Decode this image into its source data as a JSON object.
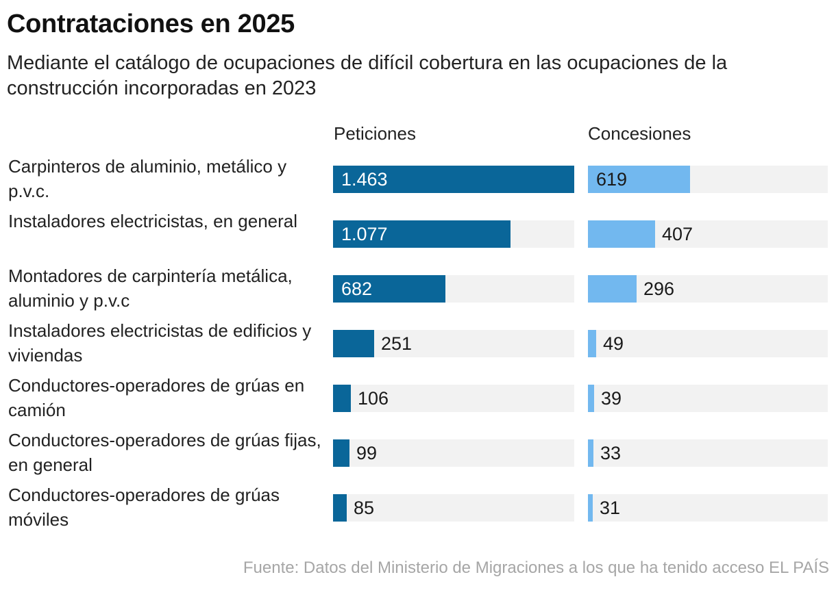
{
  "title": "Contrataciones en 2025",
  "subtitle": "Mediante el catálogo de ocupaciones de difícil cobertura en las ocupaciones de la construcción incorporadas en 2023",
  "source": "Fuente: Datos del Ministerio de Migraciones a los que ha tenido acceso EL PAÍS",
  "colors": {
    "peticiones": "#0a6699",
    "concesiones": "#72b8ef",
    "track": "#f2f2f2"
  },
  "chart_data": {
    "type": "bar",
    "orientation": "horizontal",
    "title": "Contrataciones en 2025",
    "subtitle": "Mediante el catálogo de ocupaciones de difícil cobertura en las ocupaciones de la construcción incorporadas en 2023",
    "categories": [
      "Carpinteros de aluminio, metálico y p.v.c.",
      "Instaladores electricistas, en general",
      "Montadores de carpintería metálica, aluminio y p.v.c",
      "Instaladores electricistas de edificios y viviendas",
      "Conductores-operadores de grúas en camión",
      "Conductores-operadores de grúas fijas, en general",
      "Conductores-operadores de grúas móviles"
    ],
    "series": [
      {
        "name": "Peticiones",
        "values": [
          1463,
          1077,
          682,
          251,
          106,
          99,
          85
        ],
        "labels": [
          "1.463",
          "1.077",
          "682",
          "251",
          "106",
          "99",
          "85"
        ]
      },
      {
        "name": "Concesiones",
        "values": [
          619,
          407,
          296,
          49,
          39,
          33,
          31
        ],
        "labels": [
          "619",
          "407",
          "296",
          "49",
          "39",
          "33",
          "31"
        ]
      }
    ],
    "xlim": [
      0,
      1463
    ],
    "grid": false,
    "legend": "column headers above each panel"
  }
}
